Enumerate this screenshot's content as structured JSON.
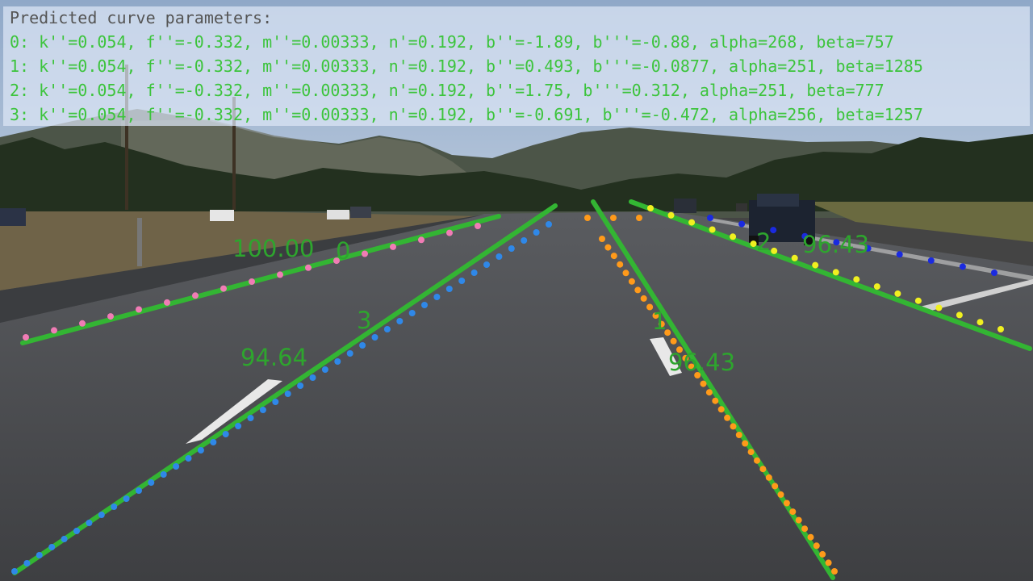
{
  "overlay": {
    "heading": "Predicted curve parameters:",
    "lines": [
      "0: k''=0.054, f''=-0.332, m''=0.00333, n'=0.192, b''=-1.89, b'''=-0.88, alpha=268, beta=757",
      "1: k''=0.054, f''=-0.332, m''=0.00333, n'=0.192, b''=0.493, b'''=-0.0877, alpha=251, beta=1285",
      "2: k''=0.054, f''=-0.332, m''=0.00333, n'=0.192, b''=1.75, b'''=0.312, alpha=251, beta=777",
      "3: k''=0.054, f''=-0.332, m''=0.00333, n'=0.192, b''=-0.691, b'''=-0.472, alpha=256, beta=1257"
    ]
  },
  "lanes": [
    {
      "id": "0",
      "score": "100.00"
    },
    {
      "id": "1",
      "score": "96.43"
    },
    {
      "id": "2",
      "score": "96.43"
    },
    {
      "id": "3",
      "score": "94.64"
    }
  ],
  "colors": {
    "prediction": "#33b533",
    "lane0_points": "#f07cb5",
    "lane1_points": "#ff9a1a",
    "lane2_points": "#f0f020",
    "lane3_points": "#2f88e8",
    "extra_points": "#1a2ae0",
    "label": "#2ea52e"
  }
}
